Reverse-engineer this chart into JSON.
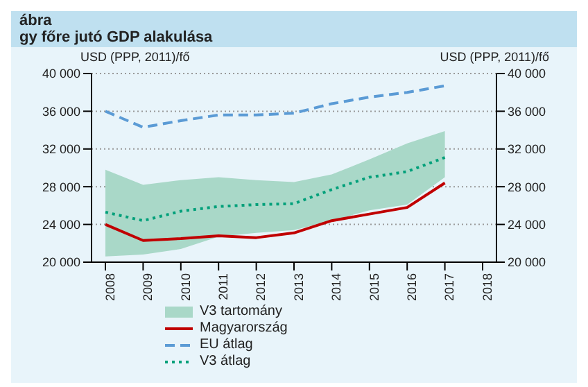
{
  "chart_data": {
    "type": "line",
    "title": "gy főre jutó GDP alakulása",
    "annotations": [
      "ábra",
      "V3 tartomány"
    ],
    "ylabel": "USD (PPP, 2011)/fő",
    "y2label": "USD (PPP, 2011)/fő",
    "categories": [
      "2008",
      "2009",
      "2010",
      "2011",
      "2012",
      "2013",
      "2014",
      "2015",
      "2016",
      "2017",
      "2018"
    ],
    "series": [
      {
        "name": "Magyarország",
        "color": "#c00000",
        "line_style": "solid",
        "values": [
          24000,
          22300,
          22500,
          22800,
          22600,
          23100,
          24400,
          25100,
          25800,
          28400,
          null
        ]
      },
      {
        "name": "EU átlag",
        "color": "#5b9bd5",
        "line_style": "dashed",
        "values": [
          36000,
          34300,
          35000,
          35600,
          35600,
          35800,
          36800,
          37500,
          38000,
          38700,
          null
        ]
      },
      {
        "name": "V3 átlag",
        "color": "#00a07a",
        "line_style": "dotted",
        "values": [
          25300,
          24400,
          25400,
          25900,
          26100,
          26200,
          27700,
          29000,
          29600,
          31100,
          null
        ],
        "lower": [
          20600,
          20800,
          21400,
          22700,
          23100,
          23400,
          24400,
          25500,
          26100,
          29000,
          null
        ],
        "upper": [
          29800,
          28200,
          28700,
          29000,
          28700,
          28500,
          29300,
          30900,
          32600,
          33900,
          null
        ]
      }
    ],
    "ylim": [
      20000,
      40000
    ],
    "yticks": [
      {
        "value": 20000,
        "label": "20 000"
      },
      {
        "value": 24000,
        "label": "24 000"
      },
      {
        "value": 28000,
        "label": "28 000"
      },
      {
        "value": 32000,
        "label": "32 000"
      },
      {
        "value": 36000,
        "label": "36 000"
      },
      {
        "value": 40000,
        "label": "40 000"
      }
    ],
    "y2lim": [
      20000,
      40000
    ],
    "y2ticks": [
      {
        "value": 20000,
        "label": "20 000"
      },
      {
        "value": 24000,
        "label": "24 000"
      },
      {
        "value": 28000,
        "label": "28 000"
      },
      {
        "value": 32000,
        "label": "32 000"
      },
      {
        "value": 36000,
        "label": "36 000"
      },
      {
        "value": 40000,
        "label": "40 000"
      }
    ],
    "grid": "y",
    "legend": "bottom",
    "marker": "none"
  }
}
